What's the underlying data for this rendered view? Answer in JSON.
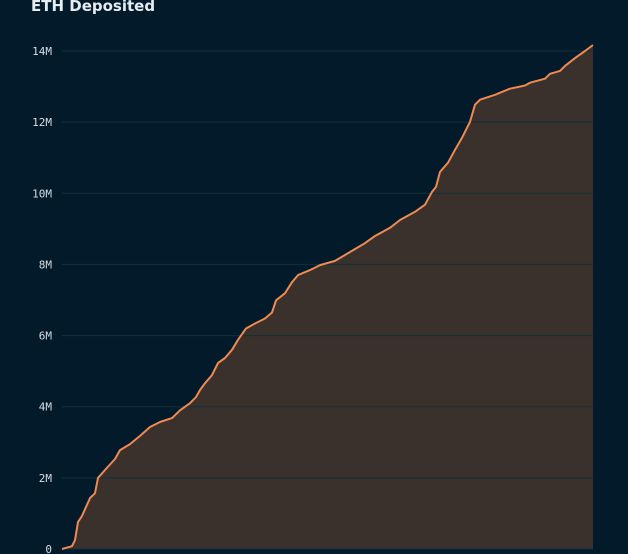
{
  "chart_data": {
    "type": "area",
    "title": "ETH Deposited",
    "xlabel": "",
    "ylabel": "",
    "ylim": [
      0,
      14000000
    ],
    "yticks": [
      0,
      2000000,
      4000000,
      6000000,
      8000000,
      10000000,
      12000000,
      14000000
    ],
    "ytick_labels": [
      "0",
      "2M",
      "4M",
      "6M",
      "8M",
      "10M",
      "12M",
      "14M"
    ],
    "grid": true,
    "colors": {
      "background": "#021a2a",
      "line": "#f08a50",
      "fill": "#3a302c",
      "grid": "#12303d"
    },
    "series": [
      {
        "x": [
          0,
          10,
          13,
          16,
          20,
          28,
          33,
          36,
          43,
          53,
          58,
          68,
          78,
          88,
          98,
          110,
          118,
          128,
          134,
          138,
          143,
          150,
          156,
          163,
          170,
          176,
          184,
          193,
          203,
          210,
          214,
          223,
          230,
          236,
          248,
          258,
          273,
          288,
          303,
          313,
          328,
          338,
          353,
          363,
          370,
          374,
          378,
          386,
          393,
          400,
          408,
          413,
          418,
          433,
          448,
          463,
          468,
          483,
          488,
          498,
          503,
          513,
          523,
          531
        ],
        "values": [
          0,
          0.08,
          0.25,
          0.76,
          0.93,
          1.43,
          1.57,
          2.0,
          2.22,
          2.53,
          2.78,
          2.95,
          3.18,
          3.43,
          3.57,
          3.68,
          3.9,
          4.1,
          4.27,
          4.47,
          4.66,
          4.89,
          5.23,
          5.37,
          5.6,
          5.88,
          6.2,
          6.34,
          6.48,
          6.65,
          6.99,
          7.19,
          7.5,
          7.7,
          7.84,
          7.98,
          8.1,
          8.35,
          8.6,
          8.8,
          9.03,
          9.25,
          9.48,
          9.68,
          10.04,
          10.18,
          10.6,
          10.86,
          11.22,
          11.56,
          12.01,
          12.49,
          12.63,
          12.77,
          12.94,
          13.03,
          13.11,
          13.22,
          13.36,
          13.44,
          13.58,
          13.8,
          14.0,
          14.17
        ],
        "value_unit": "M"
      }
    ]
  }
}
